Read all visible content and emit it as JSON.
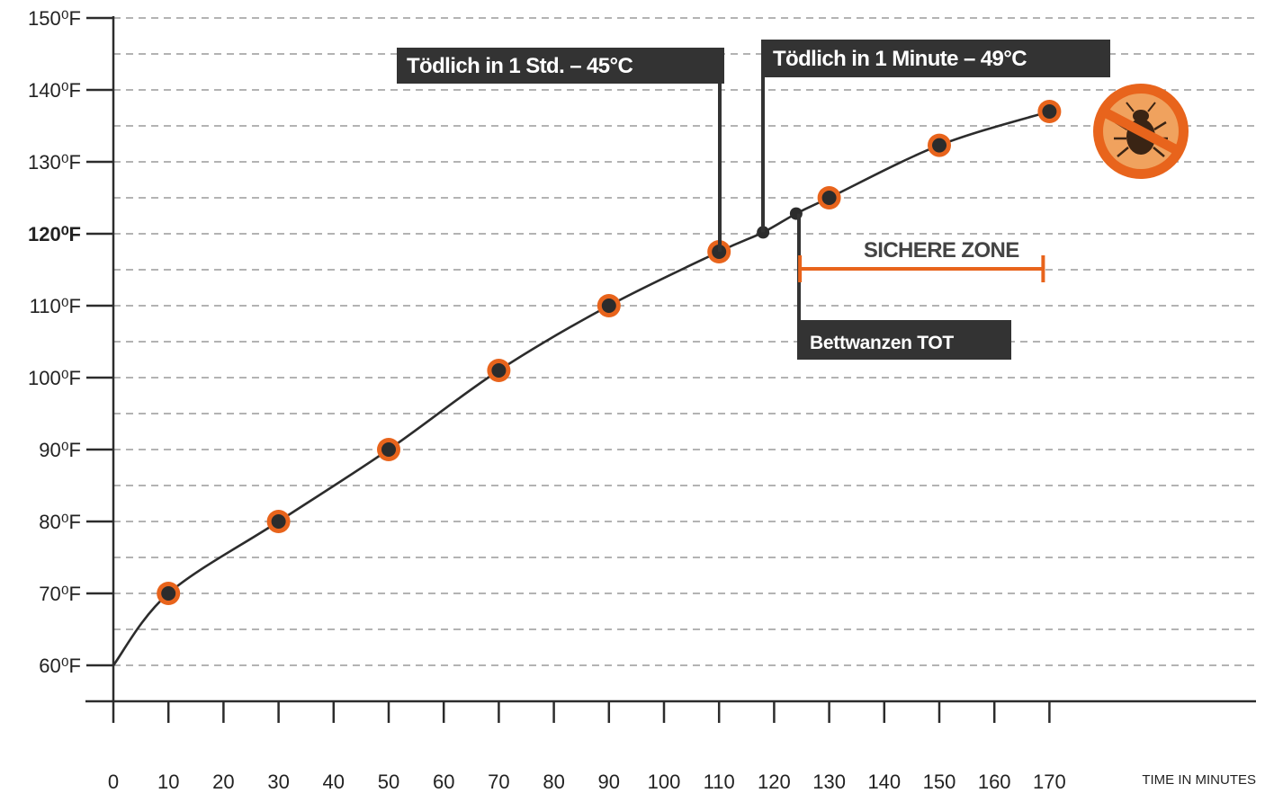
{
  "colors": {
    "accent": "#e8641c",
    "ink": "#2c2c2c",
    "grid": "#9a9a9a",
    "label_bg": "#333333"
  },
  "chart_data": {
    "type": "line",
    "xlabel": "TIME IN MINUTES",
    "ylabel": "",
    "xlim": [
      0,
      170
    ],
    "ylim": [
      55,
      150
    ],
    "x_ticks": [
      0,
      10,
      20,
      30,
      40,
      50,
      60,
      70,
      80,
      90,
      100,
      110,
      120,
      130,
      140,
      150,
      160,
      170
    ],
    "y_ticks": [
      {
        "value": 60,
        "label": "60⁰F"
      },
      {
        "value": 70,
        "label": "70⁰F"
      },
      {
        "value": 80,
        "label": "80⁰F"
      },
      {
        "value": 90,
        "label": "90⁰F"
      },
      {
        "value": 100,
        "label": "100⁰F"
      },
      {
        "value": 110,
        "label": "110⁰F"
      },
      {
        "value": 120,
        "label": "120⁰F",
        "bold": true
      },
      {
        "value": 130,
        "label": "130⁰F"
      },
      {
        "value": 140,
        "label": "140⁰F"
      },
      {
        "value": 150,
        "label": "150⁰F"
      }
    ],
    "grid": true,
    "series": [
      {
        "points": [
          {
            "x": 0,
            "y": 60,
            "marker": false
          },
          {
            "x": 10,
            "y": 70,
            "marker": true
          },
          {
            "x": 30,
            "y": 80,
            "marker": true
          },
          {
            "x": 50,
            "y": 90,
            "marker": true
          },
          {
            "x": 70,
            "y": 101,
            "marker": true
          },
          {
            "x": 90,
            "y": 110,
            "marker": true
          },
          {
            "x": 110,
            "y": 117.5,
            "marker": true
          },
          {
            "x": 118,
            "y": 120.2,
            "marker": false
          },
          {
            "x": 124,
            "y": 122.8,
            "marker": false
          },
          {
            "x": 130,
            "y": 125,
            "marker": true
          },
          {
            "x": 150,
            "y": 132.3,
            "marker": true
          },
          {
            "x": 170,
            "y": 137,
            "marker": true
          }
        ]
      }
    ],
    "annotations": [
      {
        "text": "Tödlich in 1 Std. – 45°C",
        "x": 110,
        "y": 117.5
      },
      {
        "text": "Tödlich in 1 Minute – 49°C",
        "x": 118,
        "y": 120.2
      },
      {
        "text": "Bettwanzen TOT",
        "x": 124,
        "y": 122.8
      }
    ],
    "safe_zone": {
      "label": "SICHERE ZONE",
      "x_start": 126,
      "x_end": 170,
      "y": 115
    }
  },
  "icons": {
    "badge": "no-bedbug-icon"
  }
}
